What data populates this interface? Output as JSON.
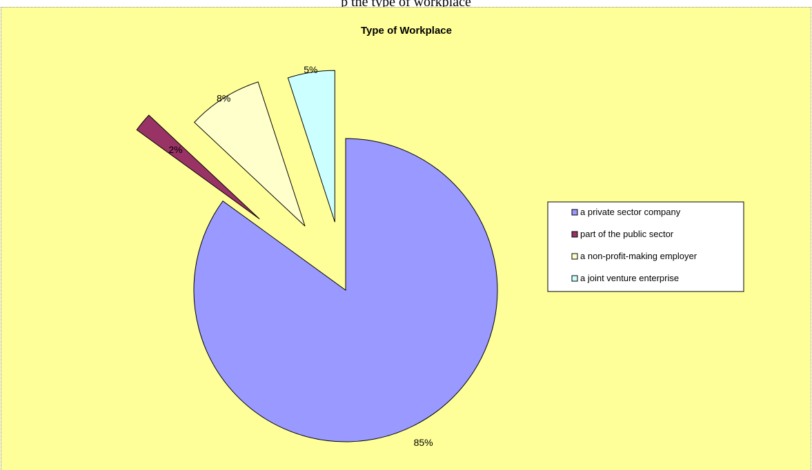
{
  "caption": "p the type of workplace",
  "chart_data": {
    "type": "pie",
    "title": "Type of Workplace",
    "exploded": true,
    "start_angle_deg": 0,
    "direction": "clockwise",
    "categories": [
      "a private sector company",
      "part of the public sector",
      "a non-profit-making employer",
      "a joint venture enterprise"
    ],
    "values": [
      85,
      2,
      8,
      5
    ],
    "data_labels": [
      "85%",
      "2%",
      "8%",
      "5%"
    ],
    "colors": [
      "#9999ff",
      "#993366",
      "#ffffcc",
      "#ccffff"
    ],
    "legend_position": "right"
  }
}
